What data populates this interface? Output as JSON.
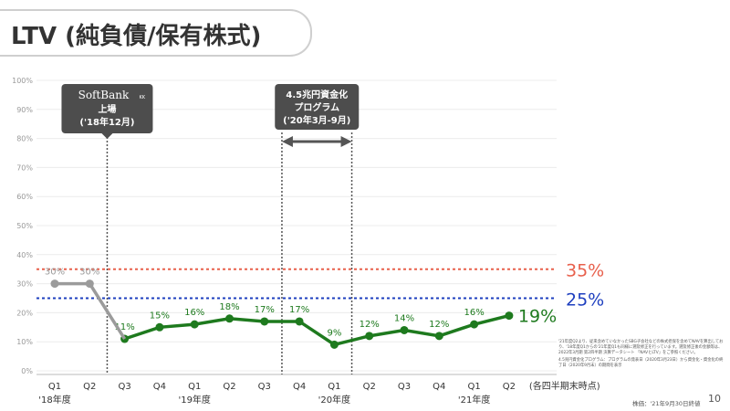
{
  "header": {
    "title": "LTV (純負債/保有株式)"
  },
  "chart_data": {
    "type": "line",
    "ylim": [
      0,
      100
    ],
    "y_ticks": [
      "0%",
      "10%",
      "20%",
      "30%",
      "40%",
      "50%",
      "60%",
      "70%",
      "80%",
      "90%",
      "100%"
    ],
    "quarters": [
      "Q1",
      "Q2",
      "Q3",
      "Q4",
      "Q1",
      "Q2",
      "Q3",
      "Q4",
      "Q1",
      "Q2",
      "Q3",
      "Q4",
      "Q1",
      "Q2"
    ],
    "year_labels": [
      {
        "label": "'18年度",
        "index": 0
      },
      {
        "label": "'19年度",
        "index": 4
      },
      {
        "label": "'20年度",
        "index": 8
      },
      {
        "label": "'21年度",
        "index": 12
      }
    ],
    "x_note": "(各四半期末時点)",
    "series": [
      {
        "values": [
          30,
          30
        ],
        "start_index": 0,
        "labels": [
          "30%",
          "30%"
        ],
        "color": "#9b9b9b"
      },
      {
        "values": [
          11,
          15,
          16,
          18,
          17,
          17,
          9,
          12,
          14,
          12,
          16,
          19
        ],
        "start_index": 2,
        "labels": [
          "11%",
          "15%",
          "16%",
          "18%",
          "17%",
          "17%",
          "9%",
          "12%",
          "14%",
          "12%",
          "16%",
          "19%"
        ],
        "color": "#1e7a1e"
      }
    ],
    "reference_lines": [
      {
        "value": 35,
        "label": "35%",
        "color": "#e8604c"
      },
      {
        "value": 25,
        "label": "25%",
        "color": "#1e3fbf"
      }
    ],
    "annotations": {
      "listing": {
        "logo_text": "SoftBank",
        "logo_sub": "KK",
        "line1": "上場",
        "line2": "('18年12月)",
        "after_index": 1
      },
      "program": {
        "line1": "4.5兆円資金化",
        "line2": "プログラム",
        "line3": "('20年3月-9月)",
        "from_after_index": 6,
        "to_after_index": 8
      }
    }
  },
  "footnotes": [
    "'21年度Q2より、従来含めていなかったSBG子会社などの株式担保を含めてNAVを算出しており、'18年度Q1からの'21年度Q1も同様に遡及修正を行っています。遡及修正後の金額等は、2022年3月期 第2四半期 決算データシート 「NAVとLTV」をご参照ください。",
    "4.5兆円資金化プログラム：プログラムの発表日（2020年3月23日）から資金化・資金化の終了日（2020年9月末）の期間を表示"
  ],
  "source": "株価：'21年9月30日終値",
  "page_number": "10"
}
